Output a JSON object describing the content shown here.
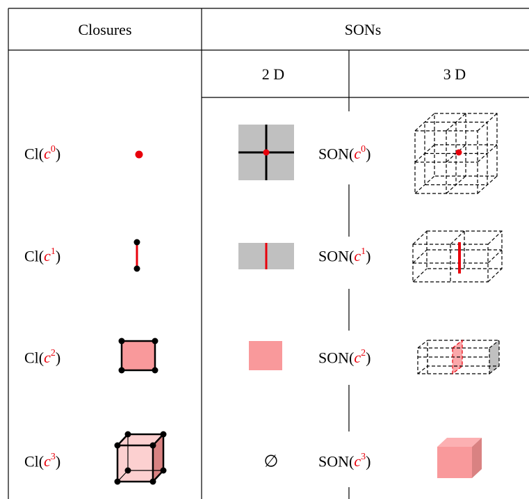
{
  "headers": {
    "closures": "Closures",
    "sons": "SONs",
    "dim2": "2 D",
    "dim3": "3 D"
  },
  "rows": [
    {
      "closure_prefix": "Cl(",
      "son_prefix": "SON(",
      "var": "c",
      "sup": "0",
      "suffix": ")",
      "closure_shape": "point-icon",
      "son2d_shape": "cross-square-icon",
      "son3d_shape": "wire-cube-grid-icon"
    },
    {
      "closure_prefix": "Cl(",
      "son_prefix": "SON(",
      "var": "c",
      "sup": "1",
      "suffix": ")",
      "closure_shape": "edge-icon",
      "son2d_shape": "split-rect-icon",
      "son3d_shape": "wire-box-edge-icon"
    },
    {
      "closure_prefix": "Cl(",
      "son_prefix": "SON(",
      "var": "c",
      "sup": "2",
      "suffix": ")",
      "closure_shape": "face-icon",
      "son2d_shape": "pink-square-icon",
      "son3d_shape": "wire-box-face-icon"
    },
    {
      "closure_prefix": "Cl(",
      "son_prefix": "SON(",
      "var": "c",
      "sup": "3",
      "suffix": ")",
      "closure_shape": "solid-cube-icon",
      "son2d_text": "∅",
      "son3d_shape": "pink-cube-icon"
    }
  ],
  "colors": {
    "red": "#e8000b",
    "gray": "#c0c0c0",
    "pink": "#f9999b",
    "pink_light": "#fcd0d0",
    "pink_dark": "#d98282",
    "line": "#000000"
  }
}
